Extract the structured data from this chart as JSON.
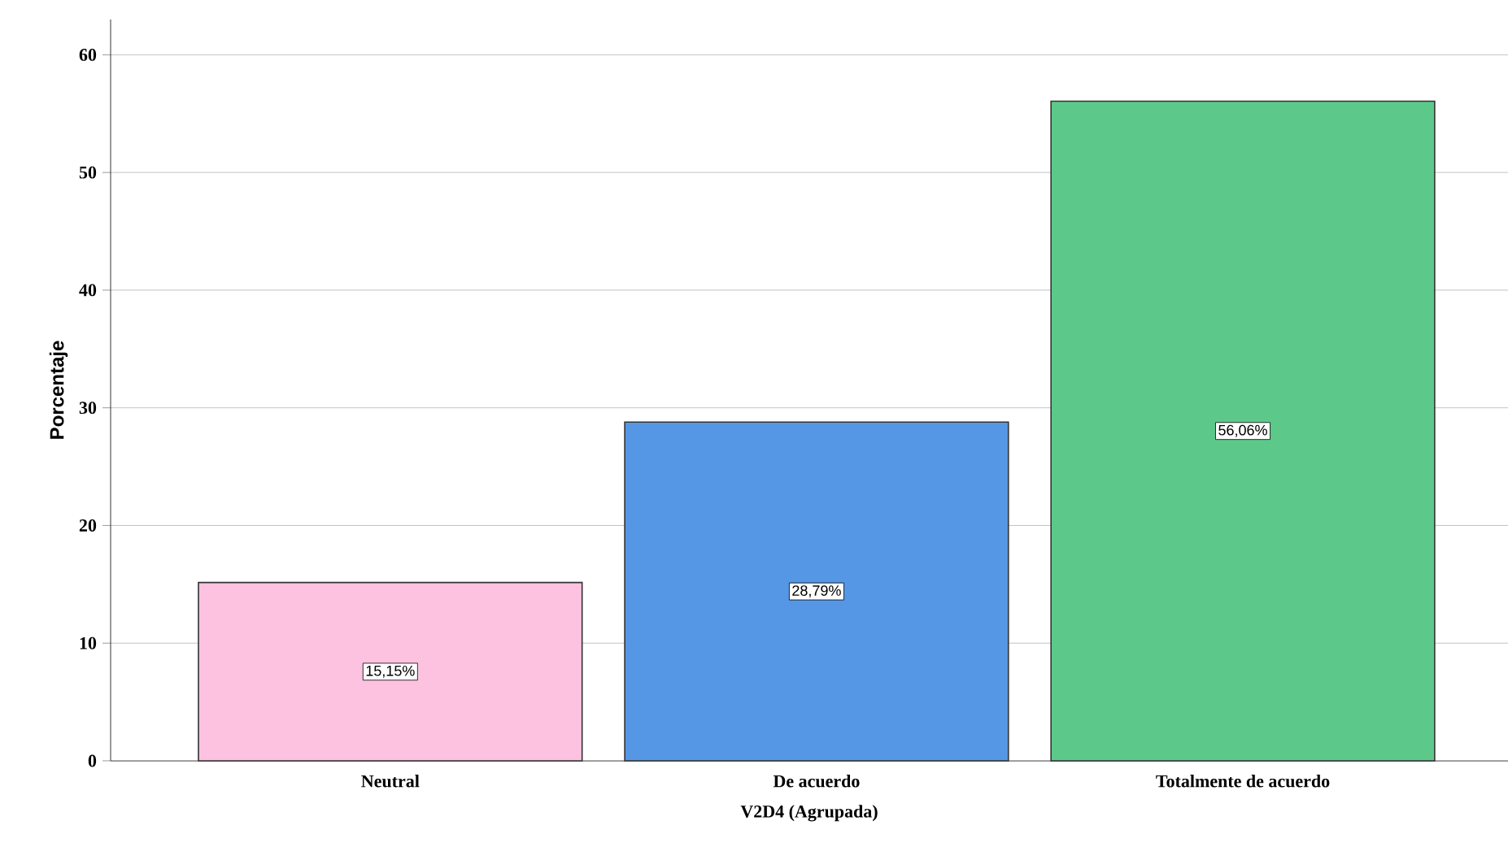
{
  "chart_data": {
    "type": "bar",
    "xlabel": "V2D4 (Agrupada)",
    "ylabel": "Porcentaje",
    "categories": [
      "Neutral",
      "De acuerdo",
      "Totalmente de acuerdo"
    ],
    "values": [
      15.15,
      28.79,
      56.06
    ],
    "colors": [
      "#fcc2e0",
      "#5597e4",
      "#5cc98a"
    ],
    "value_labels": [
      "15,15%",
      "28,79%",
      "56,06%"
    ],
    "ylim": [
      0,
      63
    ],
    "yticks": [
      0,
      10,
      20,
      30,
      40,
      50,
      60
    ],
    "grid": "y"
  }
}
